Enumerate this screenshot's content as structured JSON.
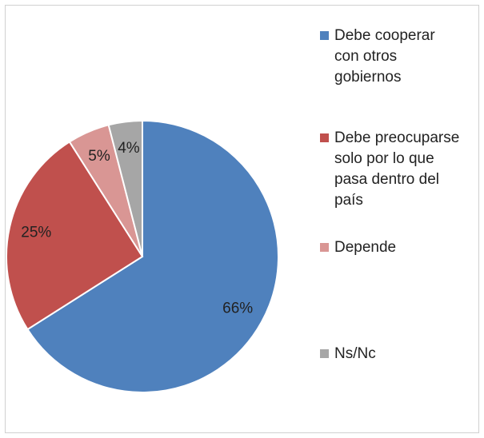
{
  "chart_data": {
    "type": "pie",
    "categories": [
      "Debe cooperar con otros gobiernos",
      "Debe preocuparse solo por lo que pasa dentro del país",
      "Depende",
      "Ns/Nc"
    ],
    "values": [
      66,
      25,
      5,
      4
    ],
    "value_labels": [
      "66%",
      "25%",
      "5%",
      "4%"
    ],
    "colors": [
      "#4f81bd",
      "#c0504d",
      "#d99694",
      "#a6a6a6"
    ],
    "legend": "right"
  }
}
